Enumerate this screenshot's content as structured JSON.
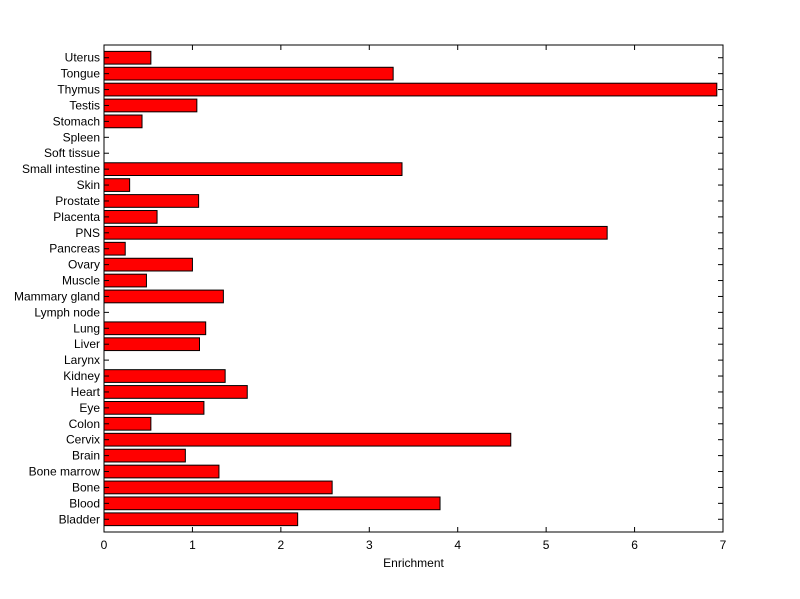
{
  "chart_data": {
    "type": "bar",
    "orientation": "horizontal",
    "xlabel": "Enrichment",
    "xlim": [
      0,
      7
    ],
    "xticks": [
      "0",
      "1",
      "2",
      "3",
      "4",
      "5",
      "6",
      "7"
    ],
    "grid": false,
    "bar_color": "#ff0000",
    "bar_edge_color": "#000000",
    "categories": [
      "Bladder",
      "Blood",
      "Bone",
      "Bone marrow",
      "Brain",
      "Cervix",
      "Colon",
      "Eye",
      "Heart",
      "Kidney",
      "Larynx",
      "Liver",
      "Lung",
      "Lymph node",
      "Mammary gland",
      "Muscle",
      "Ovary",
      "Pancreas",
      "PNS",
      "Placenta",
      "Prostate",
      "Skin",
      "Small intestine",
      "Soft tissue",
      "Spleen",
      "Stomach",
      "Testis",
      "Thymus",
      "Tongue",
      "Uterus"
    ],
    "values": [
      2.19,
      3.8,
      2.58,
      1.3,
      0.92,
      4.6,
      0.53,
      1.13,
      1.62,
      1.37,
      0,
      1.08,
      1.15,
      0,
      1.35,
      0.48,
      1.0,
      0.24,
      5.69,
      0.6,
      1.07,
      0.29,
      3.37,
      0,
      0,
      0.43,
      1.05,
      6.93,
      3.27,
      0.53
    ]
  }
}
